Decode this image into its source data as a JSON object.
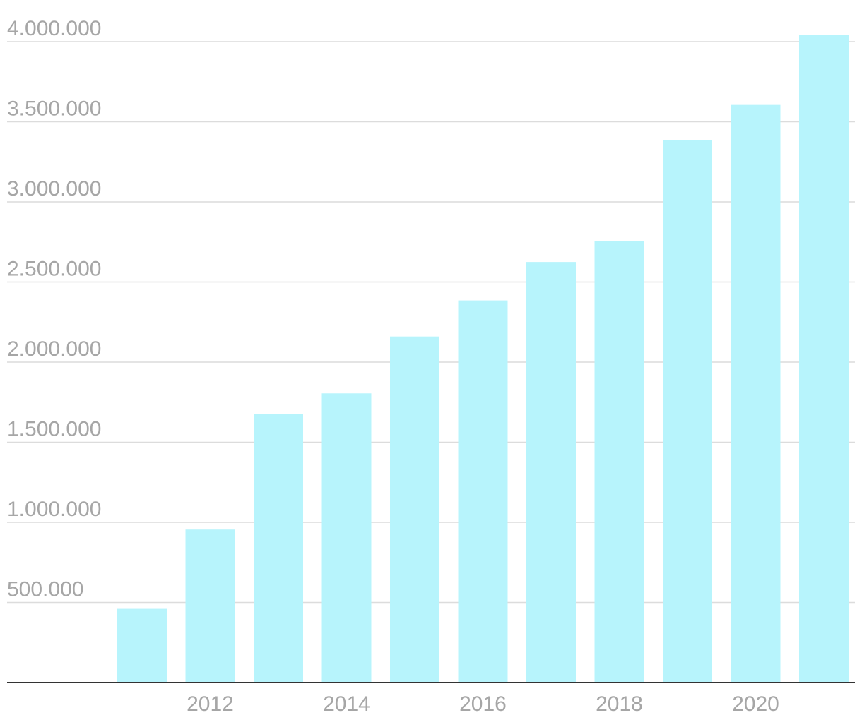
{
  "chart_data": {
    "type": "bar",
    "title": "",
    "xlabel": "",
    "ylabel": "",
    "x": [
      2011,
      2012,
      2013,
      2014,
      2015,
      2016,
      2017,
      2018,
      2019,
      2020,
      2021
    ],
    "values": [
      460000,
      955000,
      1675000,
      1805000,
      2160000,
      2385000,
      2625000,
      2755000,
      3385000,
      3605000,
      4040000
    ],
    "ylim": [
      0,
      4000000
    ],
    "y_ticks": [
      500000,
      1000000,
      1500000,
      2000000,
      2500000,
      3000000,
      3500000,
      4000000
    ],
    "y_tick_labels": [
      "500.000",
      "1.000.000",
      "1.500.000",
      "2.000.000",
      "2.500.000",
      "3.000.000",
      "3.500.000",
      "4.000.000"
    ],
    "x_tick_labels": [
      "2012",
      "2014",
      "2016",
      "2018",
      "2020"
    ],
    "grid": true,
    "legend": "none",
    "colors": {
      "bar": "#b7f4fc",
      "grid": "#dcdcdc",
      "axis": "#333333",
      "tick_text": "#a6a6a6"
    }
  }
}
